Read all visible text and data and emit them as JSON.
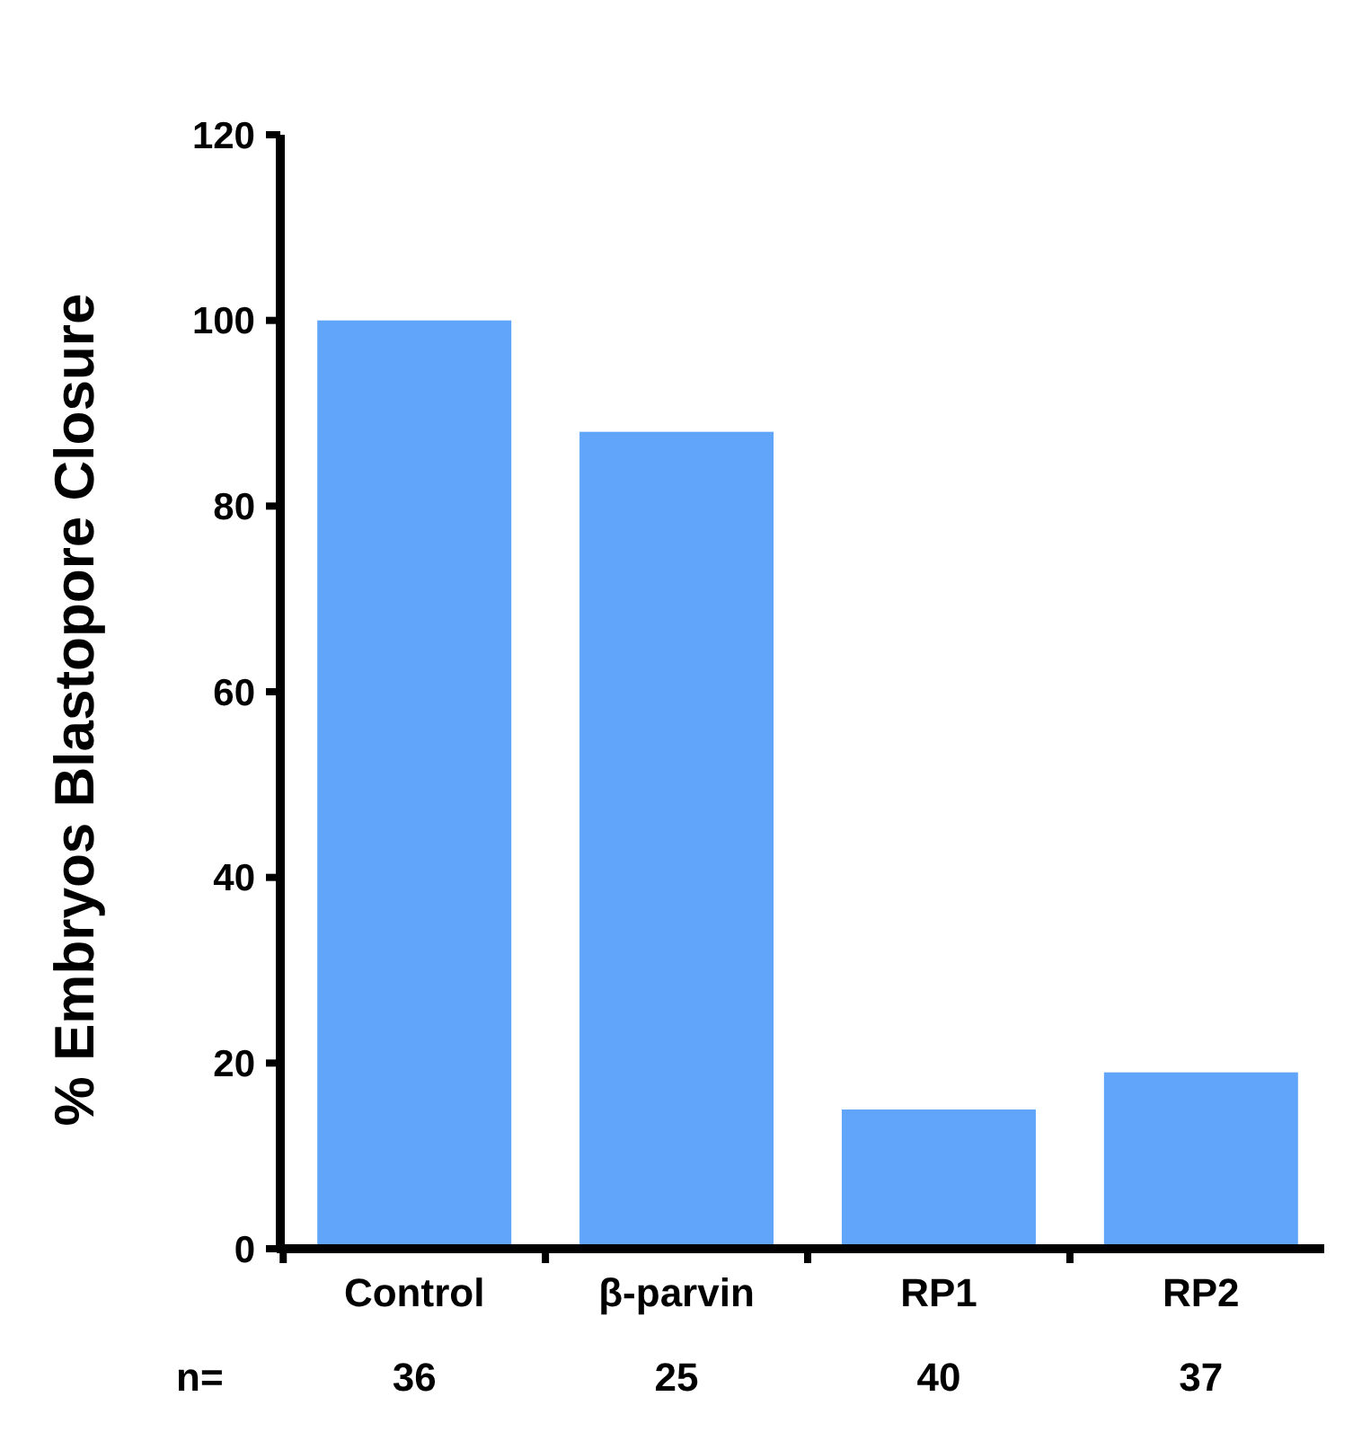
{
  "chart_data": {
    "type": "bar",
    "ylabel": "% Embryos Blastopore Closure",
    "categories": [
      "Control",
      "β-parvin",
      "RP1",
      "RP2"
    ],
    "values": [
      100,
      88,
      15,
      19
    ],
    "color": "#61a5fb",
    "ylim": [
      0,
      120
    ],
    "yticks": [
      0,
      20,
      40,
      60,
      80,
      100,
      120
    ],
    "grid": false,
    "annotations": [
      "n=",
      "36",
      "25",
      "40",
      "37"
    ]
  }
}
